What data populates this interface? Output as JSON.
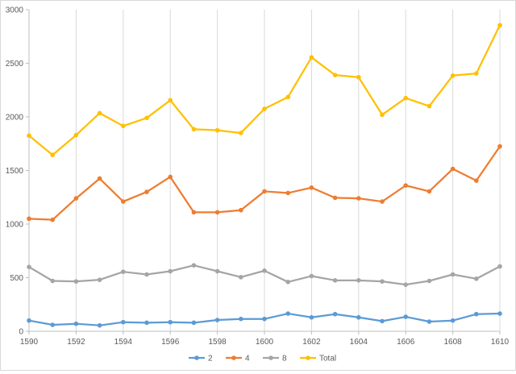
{
  "chart_data": {
    "type": "line",
    "title": "",
    "xlabel": "",
    "ylabel": "",
    "xlim": [
      1590,
      1610
    ],
    "ylim": [
      0,
      3000
    ],
    "x_ticks": [
      "1590",
      "1592",
      "1594",
      "1596",
      "1598",
      "1600",
      "1602",
      "1604",
      "1606",
      "1608",
      "1610"
    ],
    "y_ticks": [
      "0",
      "500",
      "1000",
      "1500",
      "2000",
      "2500",
      "3000"
    ],
    "grid": "vertical",
    "legend_position": "bottom",
    "x": [
      1590,
      1591,
      1592,
      1593,
      1594,
      1595,
      1596,
      1597,
      1598,
      1599,
      1600,
      1601,
      1602,
      1603,
      1604,
      1605,
      1606,
      1607,
      1608,
      1609,
      1610
    ],
    "series": [
      {
        "name": "2",
        "color": "#5B9BD5",
        "values": [
          100,
          60,
          70,
          55,
          85,
          80,
          85,
          80,
          105,
          115,
          115,
          165,
          130,
          160,
          130,
          95,
          135,
          90,
          100,
          160,
          165
        ]
      },
      {
        "name": "4",
        "color": "#ED7D31",
        "values": [
          1050,
          1040,
          1240,
          1425,
          1210,
          1300,
          1440,
          1110,
          1110,
          1130,
          1305,
          1290,
          1340,
          1245,
          1240,
          1210,
          1360,
          1305,
          1515,
          1405,
          1725
        ]
      },
      {
        "name": "8",
        "color": "#A5A5A5",
        "values": [
          600,
          470,
          465,
          480,
          555,
          530,
          560,
          615,
          560,
          505,
          565,
          460,
          515,
          475,
          475,
          465,
          435,
          470,
          530,
          490,
          605
        ]
      },
      {
        "name": "Total",
        "color": "#FFC000",
        "values": [
          1825,
          1645,
          1830,
          2035,
          1915,
          1990,
          2155,
          1885,
          1875,
          1850,
          2075,
          2185,
          2555,
          2390,
          2370,
          2020,
          2175,
          2100,
          2385,
          2405,
          2855
        ]
      }
    ]
  }
}
